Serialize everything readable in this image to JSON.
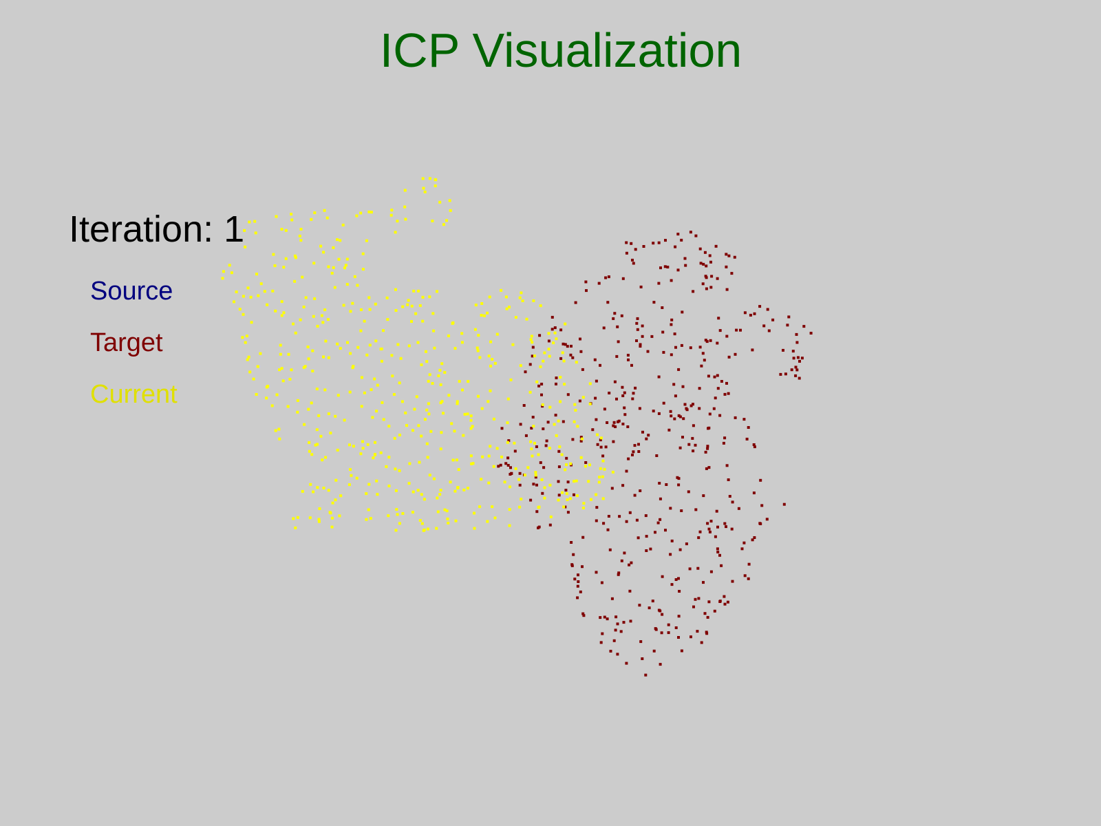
{
  "title": "ICP Visualization",
  "iteration": {
    "label": "Iteration: ",
    "value": "1"
  },
  "legend": {
    "source": "Source",
    "target": "Target",
    "current": "Current"
  },
  "colors": {
    "background": "#cccccc",
    "title": "#006400",
    "source": "#00007f",
    "target": "#7f0000",
    "current": "#ffff00"
  }
}
